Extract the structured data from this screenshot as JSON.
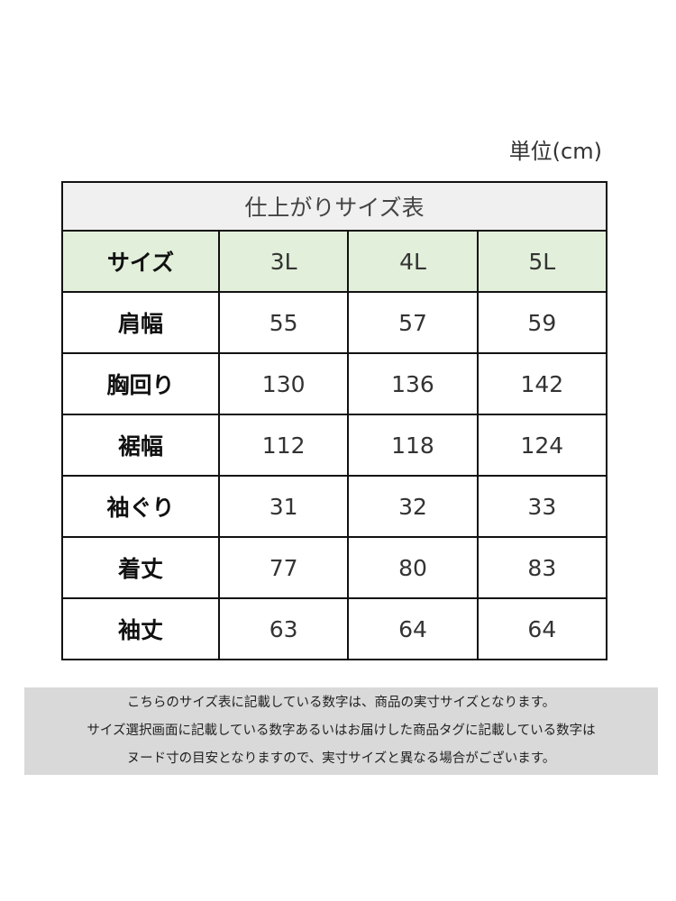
{
  "unit_label": "単位(cm)",
  "table": {
    "title": "仕上がりサイズ表",
    "header": [
      "サイズ",
      "3L",
      "4L",
      "5L"
    ],
    "rows": [
      {
        "label": "肩幅",
        "values": [
          "55",
          "57",
          "59"
        ]
      },
      {
        "label": "胸回り",
        "values": [
          "130",
          "136",
          "142"
        ]
      },
      {
        "label": "裾幅",
        "values": [
          "112",
          "118",
          "124"
        ]
      },
      {
        "label": "袖ぐり",
        "values": [
          "31",
          "32",
          "33"
        ]
      },
      {
        "label": "着丈",
        "values": [
          "77",
          "80",
          "83"
        ]
      },
      {
        "label": "袖丈",
        "values": [
          "63",
          "64",
          "64"
        ]
      }
    ]
  },
  "notes": [
    "こちらのサイズ表に記載している数字は、商品の実寸サイズとなります。",
    "サイズ選択画面に記載している数字あるいはお届けした商品タグに記載している数字は",
    "ヌード寸の目安となりますので、実寸サイズと異なる場合がございます。"
  ],
  "colors": {
    "header_bg": "#e2efda",
    "title_bg": "#f0f0f0",
    "note_bg": "#d9d9d9"
  }
}
